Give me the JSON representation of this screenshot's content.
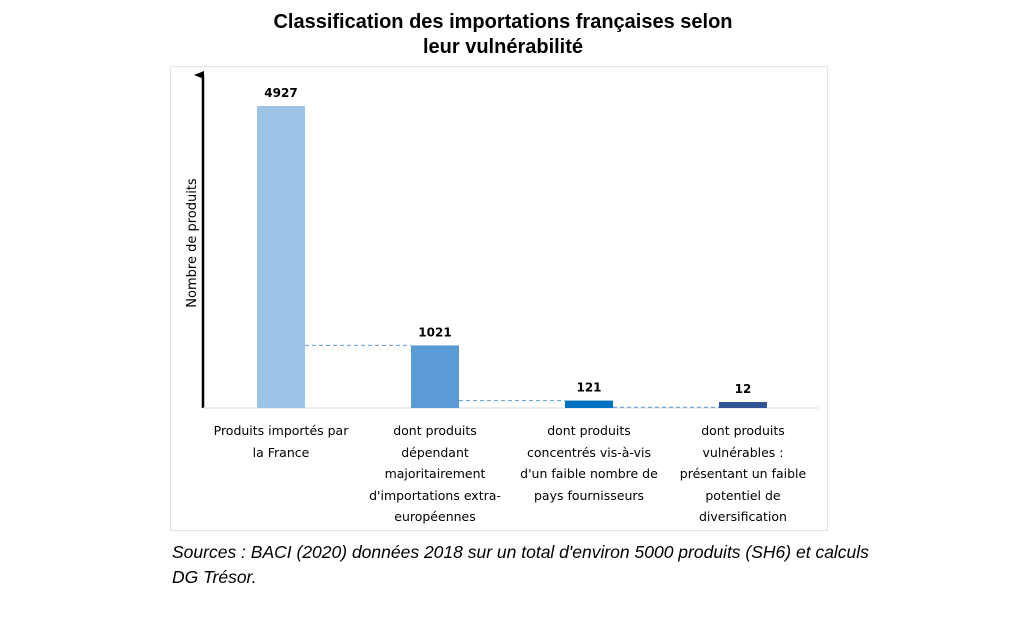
{
  "chart_data": {
    "type": "bar",
    "title_lines": [
      "Classification des importations françaises selon",
      "leur vulnérabilité"
    ],
    "ylabel": "Nombre de produits",
    "xlabel": "",
    "categories": [
      "Produits importés par la France",
      "dont produits dépendant majoritairement d'importations extra-européennes",
      "dont produits concentrés vis-à-vis d'un faible nombre de pays fournisseurs",
      "dont produits vulnérables : présentant un faible potentiel de diversification"
    ],
    "category_lines": [
      [
        "Produits importés par",
        "la France"
      ],
      [
        "dont produits",
        "dépendant",
        "majoritairement",
        "d'importations extra-",
        "européennes"
      ],
      [
        "dont produits",
        "concentrés vis-à-vis",
        "d'un faible nombre de",
        "pays fournisseurs"
      ],
      [
        "dont produits",
        "vulnérables :",
        "présentant un faible",
        "potentiel de",
        "diversification"
      ]
    ],
    "values": [
      4927,
      1021,
      121,
      12
    ],
    "data_labels": [
      "4927",
      "1021",
      "121",
      "12"
    ],
    "ylim": [
      0,
      5000
    ],
    "grid": false,
    "legend": "none",
    "bar_colors": [
      "#9dc3e6",
      "#5b9bd5",
      "#0070c0",
      "#2f5597"
    ],
    "connector_color": "#5b9bd5"
  },
  "source_note": "Sources : BACI (2020) données 2018 sur un total d'environ 5000 produits (SH6) et calculs DG Trésor."
}
